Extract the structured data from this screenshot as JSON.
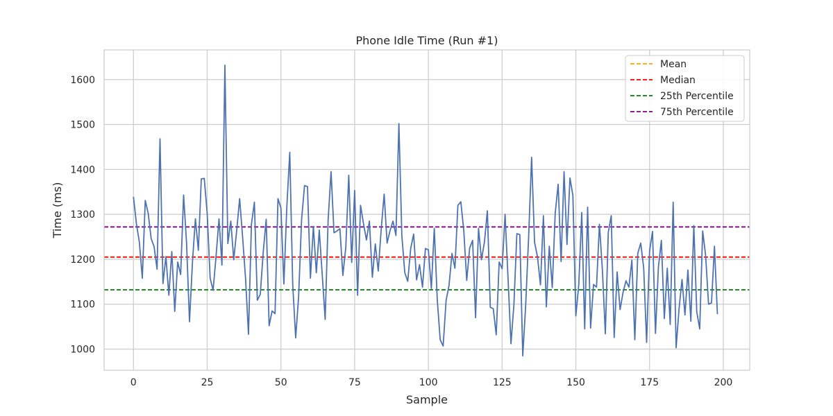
{
  "chart_data": {
    "type": "line",
    "title": "Phone Idle Time (Run #1)",
    "xlabel": "Sample",
    "ylabel": "Time (ms)",
    "xlim": [
      -9.95,
      208.95
    ],
    "ylim": [
      953,
      1666
    ],
    "xticks": [
      0,
      25,
      50,
      75,
      100,
      125,
      150,
      175,
      200
    ],
    "yticks": [
      1000,
      1100,
      1200,
      1300,
      1400,
      1500,
      1600
    ],
    "grid": true,
    "legend_position": "top-right",
    "line_color": "#4c72b0",
    "series": [
      {
        "values": [
          1339,
          1279,
          1238,
          1158,
          1331,
          1302,
          1246,
          1228,
          1178,
          1468,
          1146,
          1206,
          1120,
          1217,
          1084,
          1194,
          1166,
          1343,
          1236,
          1061,
          1193,
          1290,
          1220,
          1379,
          1380,
          1302,
          1158,
          1131,
          1206,
          1290,
          1187,
          1632,
          1235,
          1285,
          1199,
          1264,
          1335,
          1250,
          1158,
          1033,
          1278,
          1327,
          1109,
          1122,
          1216,
          1289,
          1052,
          1085,
          1079,
          1335,
          1314,
          1145,
          1317,
          1438,
          1144,
          1025,
          1117,
          1288,
          1364,
          1362,
          1158,
          1273,
          1170,
          1265,
          1166,
          1066,
          1287,
          1395,
          1259,
          1263,
          1268,
          1164,
          1227,
          1387,
          1193,
          1353,
          1120,
          1320,
          1279,
          1243,
          1285,
          1160,
          1234,
          1174,
          1267,
          1345,
          1236,
          1264,
          1285,
          1253,
          1502,
          1253,
          1170,
          1151,
          1224,
          1256,
          1154,
          1188,
          1138,
          1224,
          1221,
          1135,
          1269,
          1111,
          1021,
          1007,
          1108,
          1142,
          1213,
          1180,
          1320,
          1328,
          1264,
          1153,
          1225,
          1242,
          1070,
          1269,
          1199,
          1238,
          1308,
          1093,
          1090,
          1032,
          1194,
          1179,
          1300,
          1159,
          1012,
          1099,
          1257,
          1255,
          985,
          1099,
          1251,
          1427,
          1238,
          1205,
          1143,
          1297,
          1094,
          1229,
          1137,
          1302,
          1367,
          1195,
          1395,
          1233,
          1381,
          1342,
          1074,
          1144,
          1304,
          1045,
          1316,
          1047,
          1144,
          1138,
          1278,
          1176,
          1034,
          1260,
          1297,
          1026,
          1172,
          1088,
          1126,
          1152,
          1138,
          1198,
          1021,
          1213,
          1236,
          1181,
          1015,
          1218,
          1262,
          1035,
          1183,
          1242,
          1068,
          1180,
          1055,
          1327,
          1003,
          1090,
          1155,
          1076,
          1176,
          1062,
          1275,
          1083,
          1045,
          1263,
          1209,
          1100,
          1103,
          1229,
          1078
        ]
      }
    ],
    "reference_lines": [
      {
        "name": "Mean",
        "value": 1205,
        "color": "#ffa500"
      },
      {
        "name": "Median",
        "value": 1205,
        "color": "#ff0000"
      },
      {
        "name": "25th Percentile",
        "value": 1132,
        "color": "#008000"
      },
      {
        "name": "75th Percentile",
        "value": 1272,
        "color": "#800080"
      }
    ]
  }
}
